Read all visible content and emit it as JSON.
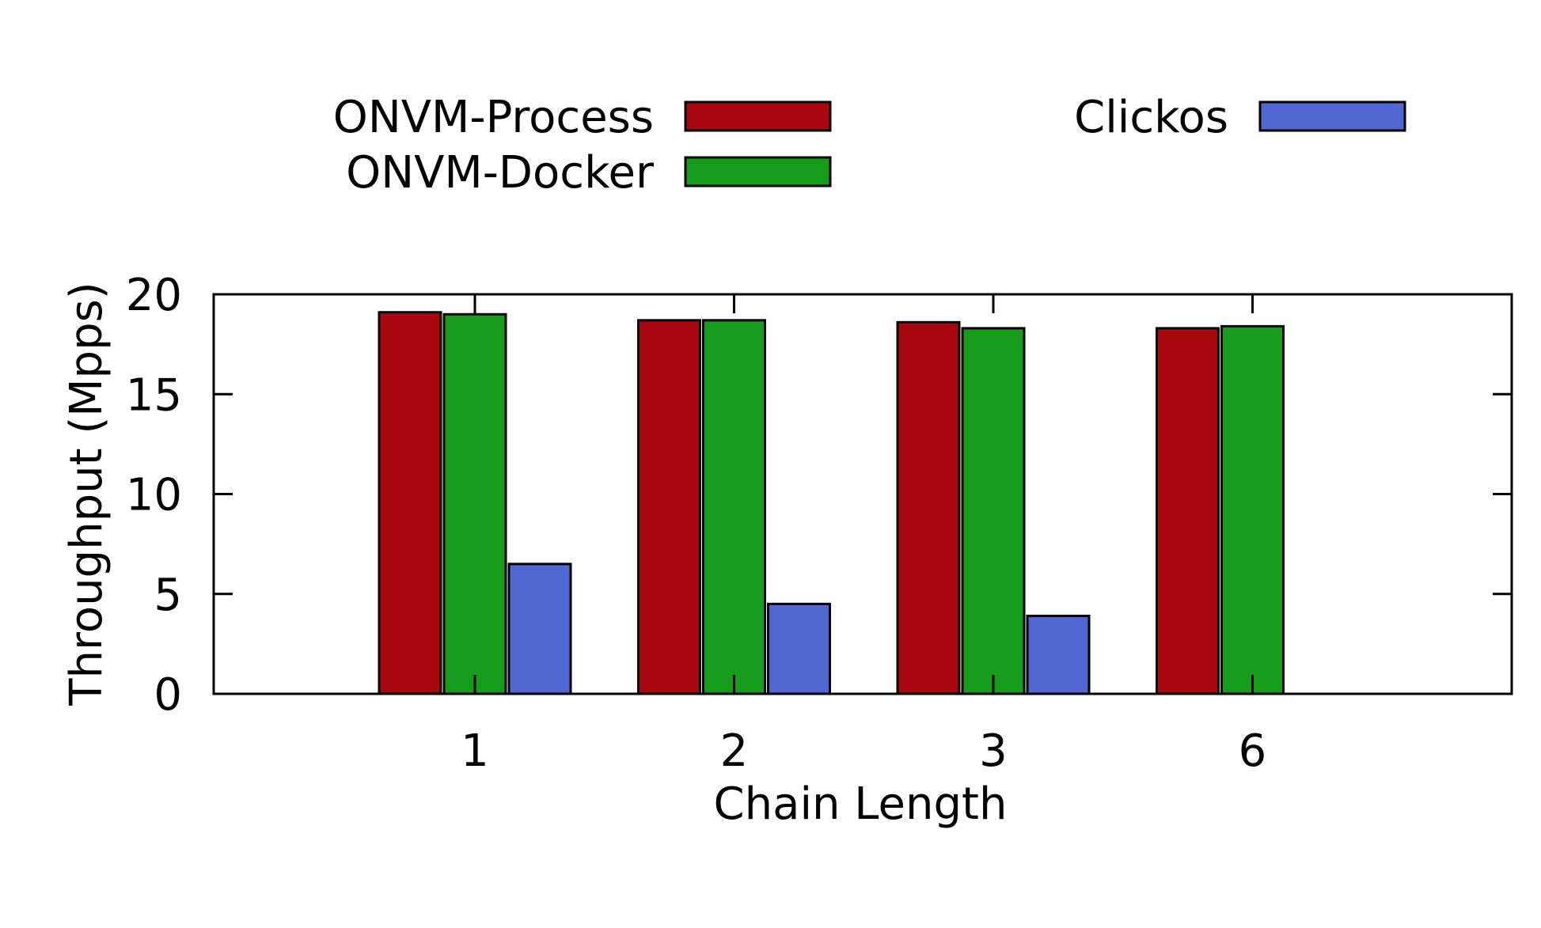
{
  "chart_data": {
    "type": "bar",
    "title": "",
    "xlabel": "Chain Length",
    "ylabel": "Throughput (Mpps)",
    "categories": [
      "1",
      "2",
      "3",
      "6"
    ],
    "ylim": [
      0,
      20
    ],
    "yticks": [
      "0",
      "5",
      "10",
      "15",
      "20"
    ],
    "grid": false,
    "legend_position": "top",
    "series": [
      {
        "name": "ONVM-Process",
        "color": "#a8070f",
        "values": [
          19.1,
          18.7,
          18.6,
          18.3
        ]
      },
      {
        "name": "ONVM-Docker",
        "color": "#179d1c",
        "values": [
          19.0,
          18.7,
          18.3,
          18.4
        ]
      },
      {
        "name": "Clickos",
        "color": "#5167d1",
        "values": [
          6.5,
          4.5,
          3.9,
          null
        ]
      }
    ]
  }
}
